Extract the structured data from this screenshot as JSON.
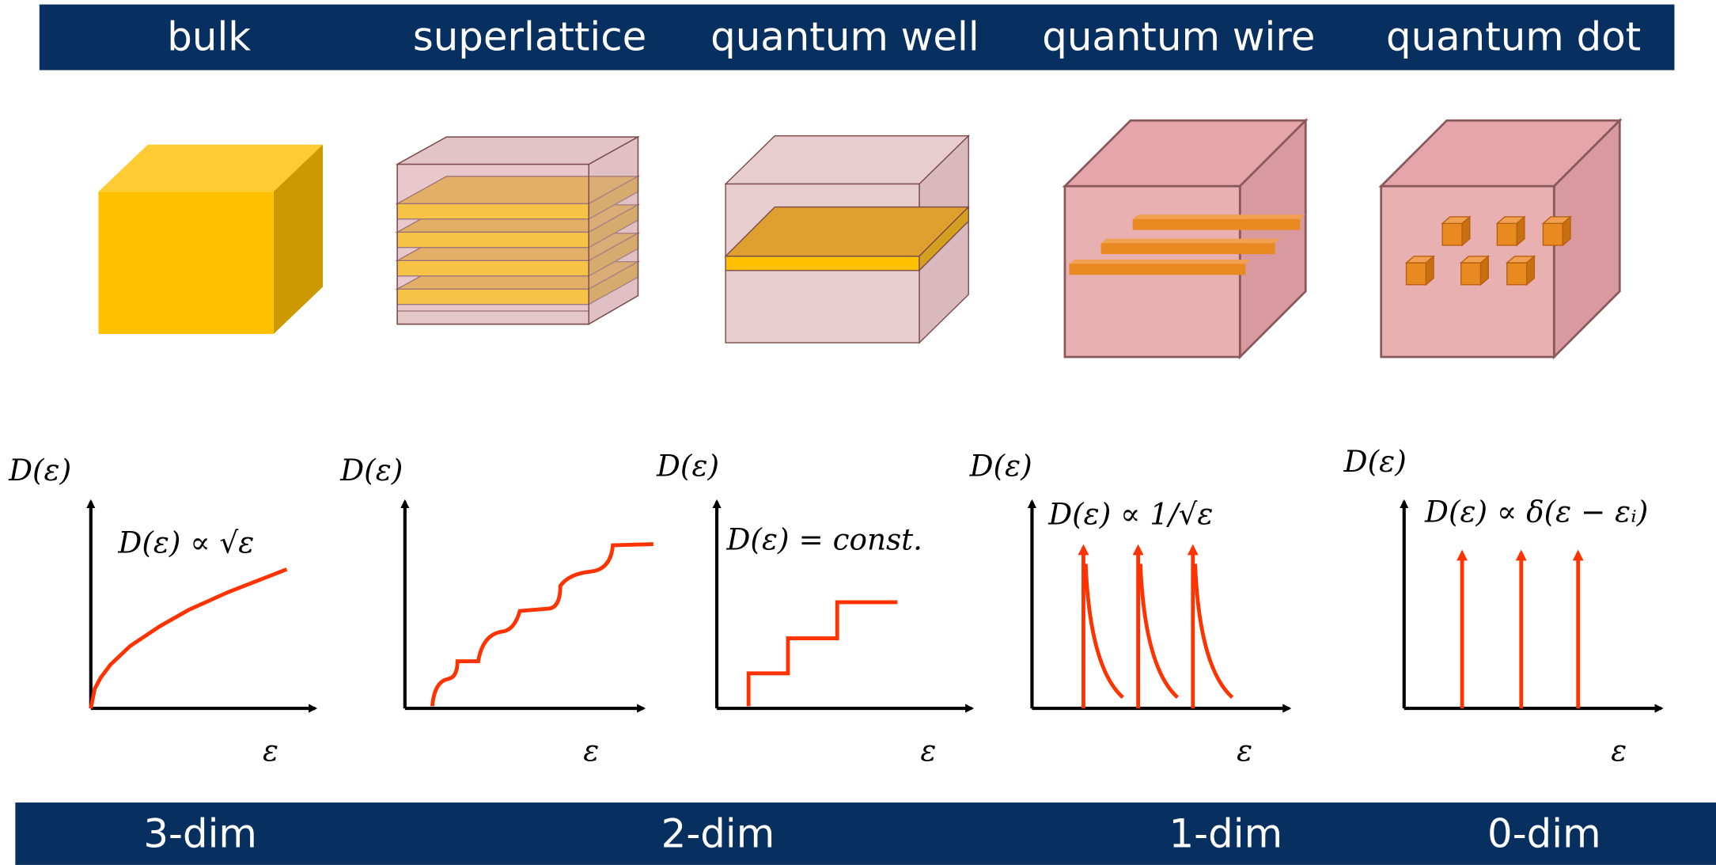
{
  "header": {
    "labels": [
      "bulk",
      "superlattice",
      "quantum well",
      "quantum wire",
      "quantum dot"
    ]
  },
  "plots": [
    {
      "y_label": "D(ε)",
      "x_label": "ε",
      "formula": "D(ε) ∝ √ε"
    },
    {
      "y_label": "D(ε)",
      "x_label": "ε"
    },
    {
      "y_label": "D(ε)",
      "x_label": "ε",
      "formula": "D(ε) = const."
    },
    {
      "y_label": "D(ε)",
      "x_label": "ε",
      "formula": "D(ε) ∝ 1/√ε"
    },
    {
      "y_label": "D(ε)",
      "x_label": "ε",
      "formula": "D(ε) ∝ δ(ε − εᵢ)"
    }
  ],
  "footer": {
    "labels": [
      "3-dim",
      "2-dim",
      "1-dim",
      "0-dim"
    ]
  }
}
